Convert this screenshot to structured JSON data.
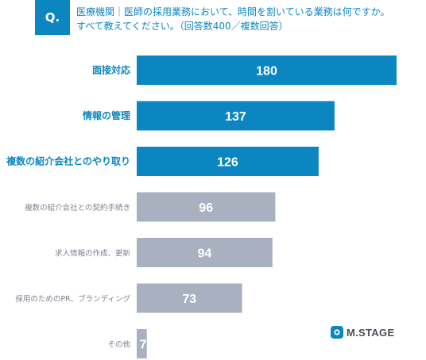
{
  "question": {
    "badge": "Q.",
    "line1": "医療機関｜医師の採用業務において、時間を割いている業務は何ですか。",
    "line2": "すべて教えてください。（回答数400／複数回答）"
  },
  "logo": {
    "text": "M.STAGE",
    "icon": "m-stage-logo-icon",
    "color": "#0c86c0"
  },
  "colors": {
    "highlight": "#0c86c0",
    "muted": "#a9b0bf",
    "highlight_label": "#0c86c0",
    "muted_label": "#7d8290"
  },
  "chart_data": {
    "type": "bar",
    "orientation": "horizontal",
    "categories": [
      "面接対応",
      "情報の管理",
      "複数の紹介会社とのやり取り",
      "複数の紹介会社との契約手続き",
      "求人情報の作成、更新",
      "採用のためのPR、ブランディング",
      "その他"
    ],
    "values": [
      180,
      137,
      126,
      96,
      94,
      73,
      7
    ],
    "highlighted": [
      true,
      true,
      true,
      false,
      false,
      false,
      false
    ],
    "xlim": [
      0,
      200
    ],
    "grid": false,
    "legend": "none"
  }
}
